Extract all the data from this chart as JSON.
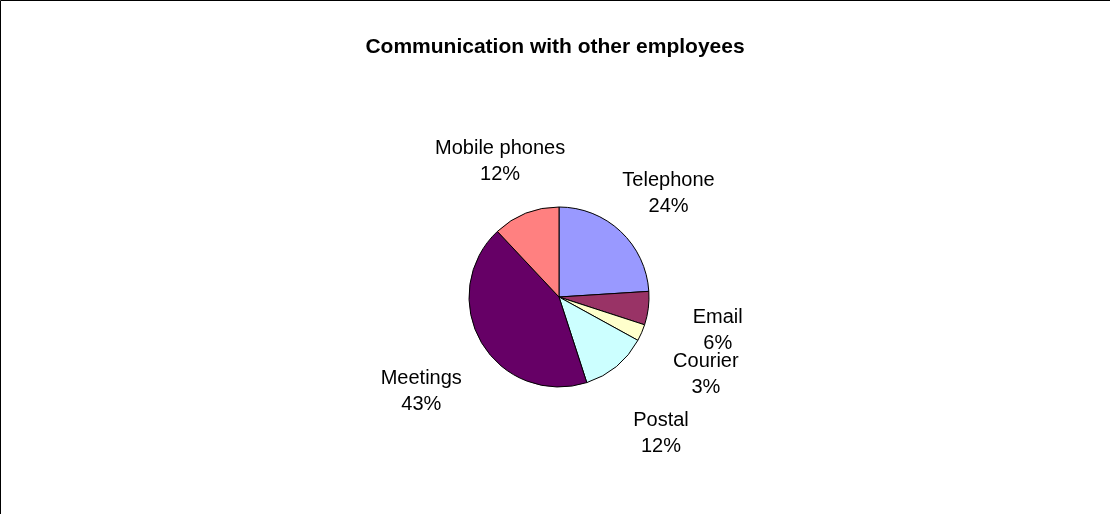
{
  "chart_data": {
    "type": "pie",
    "title": "Communication with other employees",
    "categories": [
      "Telephone",
      "Email",
      "Courier",
      "Postal",
      "Meetings",
      "Mobile phones"
    ],
    "values": [
      24,
      6,
      3,
      12,
      43,
      12
    ],
    "value_labels": [
      "24%",
      "6%",
      "3%",
      "12%",
      "43%",
      "12%"
    ],
    "colors": [
      "#9999ff",
      "#993366",
      "#ffffcc",
      "#ccffff",
      "#660066",
      "#ff8080"
    ]
  }
}
